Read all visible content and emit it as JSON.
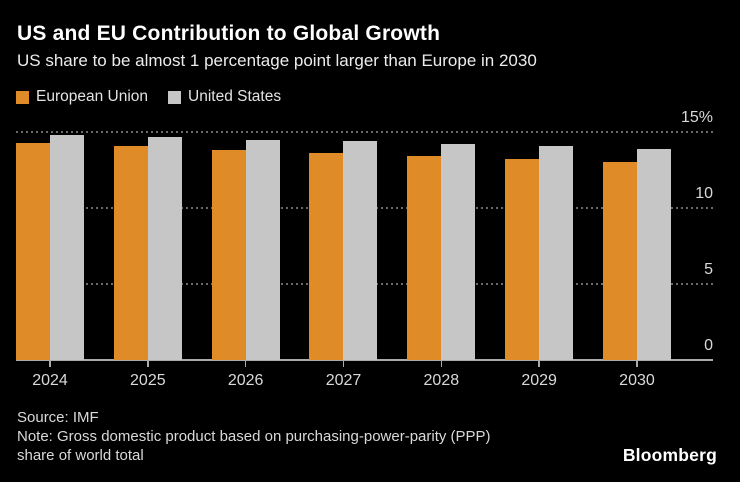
{
  "header": {
    "title": "US and EU Contribution to Global Growth",
    "subtitle": "US share to be almost 1 percentage point larger than Europe in 2030"
  },
  "chart_data": {
    "type": "bar",
    "title": "US and EU Contribution to Global Growth",
    "subtitle": "US share to be almost 1 percentage point larger than Europe in 2030",
    "categories": [
      "2024",
      "2025",
      "2026",
      "2027",
      "2028",
      "2029",
      "2030"
    ],
    "series": [
      {
        "name": "European Union",
        "color": "#DF8B28",
        "values": [
          14.3,
          14.1,
          13.8,
          13.6,
          13.4,
          13.2,
          13.0
        ]
      },
      {
        "name": "United States",
        "color": "#C6C6C6",
        "values": [
          14.8,
          14.7,
          14.5,
          14.4,
          14.2,
          14.1,
          13.9
        ]
      }
    ],
    "ylim": [
      0,
      15
    ],
    "yticks": [
      {
        "value": 0,
        "label": "0"
      },
      {
        "value": 5,
        "label": "5"
      },
      {
        "value": 10,
        "label": "10"
      },
      {
        "value": 15,
        "label": "15%"
      }
    ],
    "ylabel": "",
    "xlabel": "",
    "grid": "horizontal-dotted",
    "legend_position": "top-left",
    "axis_side": "right"
  },
  "footer": {
    "source": "Source: IMF",
    "note_line1": "Note: Gross domestic product based on purchasing-power-parity (PPP)",
    "note_line2": "share of world total"
  },
  "branding": {
    "logo_text": "Bloomberg"
  },
  "colors": {
    "background": "#000000",
    "eu_bar": "#DF8B28",
    "us_bar": "#C6C6C6",
    "gridline": "#6a6a6a",
    "axis": "#ababab",
    "text_primary": "#ffffff",
    "text_secondary": "#d9d9d9"
  }
}
